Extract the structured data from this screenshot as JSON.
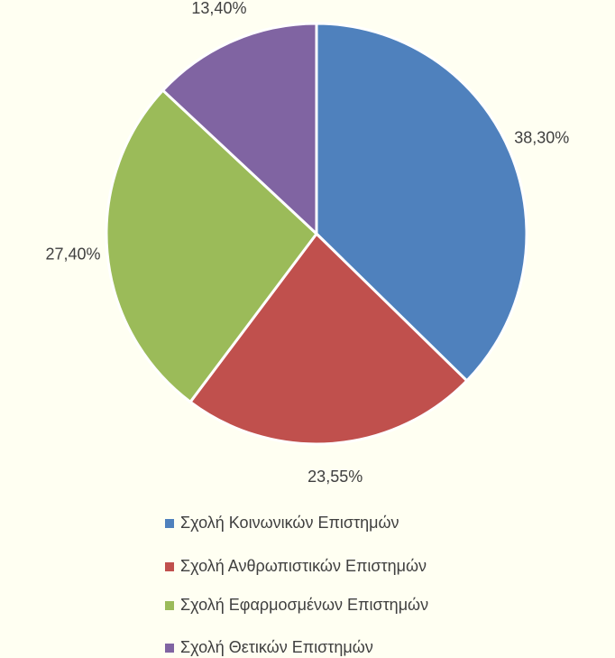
{
  "chart_data": {
    "type": "pie",
    "categories": [
      "Σχολή Κοινωνικών Επιστημών",
      "Σχολή Ανθρωπιστικών Επιστημών",
      "Σχολή Εφαρμοσμένων Επιστημών",
      "Σχολή Θετικών Επιστημών"
    ],
    "values": [
      38.3,
      23.55,
      27.4,
      13.4
    ],
    "value_labels": [
      "38,30%",
      "23,55%",
      "27,40%",
      "13,40%"
    ],
    "colors": [
      "#4f81bd",
      "#c0504d",
      "#9bbb59",
      "#8064a2"
    ],
    "legend": "bottom"
  }
}
